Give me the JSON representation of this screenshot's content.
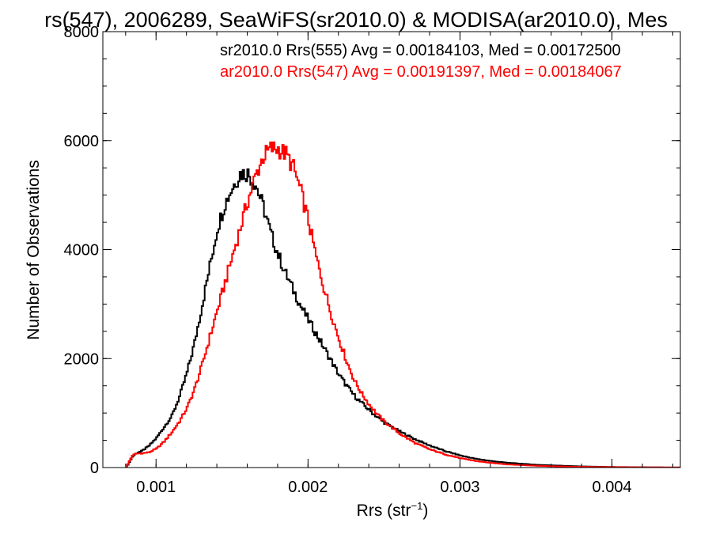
{
  "chart_data": {
    "type": "line",
    "title": "rs(547), 2006289, SeaWiFS(sr2010.0) & MODISA(ar2010.0), Mes",
    "xlabel_main": "Rrs (str",
    "xlabel_sup": "−1",
    "xlabel_close": ")",
    "ylabel": "Number of Observations",
    "xlim": [
      0.00065,
      0.00445
    ],
    "ylim": [
      0,
      8000
    ],
    "x_ticks": [
      {
        "value": 0.001,
        "label": "0.001"
      },
      {
        "value": 0.002,
        "label": "0.002"
      },
      {
        "value": 0.003,
        "label": "0.003"
      },
      {
        "value": 0.004,
        "label": "0.004"
      }
    ],
    "y_ticks": [
      {
        "value": 0,
        "label": "0"
      },
      {
        "value": 2000,
        "label": "2000"
      },
      {
        "value": 4000,
        "label": "4000"
      },
      {
        "value": 6000,
        "label": "6000"
      },
      {
        "value": 8000,
        "label": "8000"
      }
    ],
    "x_minor_step": 0.0002,
    "y_minor_step": 500,
    "grid": false,
    "legend_position": "top-right",
    "series": [
      {
        "name": "sr2010.0 Rrs(555) Avg = 0.00184103, Med = 0.00172500",
        "color": "#000000",
        "x": [
          0.0008,
          0.00082,
          0.00084,
          0.00086,
          0.00088,
          0.0009,
          0.00095,
          0.001,
          0.00105,
          0.0011,
          0.00115,
          0.0012,
          0.00125,
          0.0013,
          0.00135,
          0.0014,
          0.00145,
          0.0015,
          0.00155,
          0.0016,
          0.00165,
          0.0017,
          0.00175,
          0.0018,
          0.00185,
          0.0019,
          0.00195,
          0.002,
          0.00205,
          0.0021,
          0.00215,
          0.0022,
          0.00225,
          0.0023,
          0.00235,
          0.0024,
          0.00245,
          0.0025,
          0.0026,
          0.0027,
          0.0028,
          0.0029,
          0.003,
          0.0031,
          0.0032,
          0.0033,
          0.0034,
          0.0035,
          0.0036,
          0.0037,
          0.0038,
          0.0039,
          0.004,
          0.0041,
          0.0042,
          0.0043,
          0.0044
        ],
        "y": [
          0,
          100,
          200,
          250,
          280,
          300,
          400,
          550,
          750,
          950,
          1300,
          1750,
          2300,
          3000,
          3700,
          4400,
          4850,
          5150,
          5400,
          5400,
          5200,
          4800,
          4300,
          3900,
          3550,
          3250,
          2950,
          2700,
          2450,
          2200,
          1950,
          1700,
          1500,
          1320,
          1180,
          1050,
          930,
          820,
          660,
          520,
          400,
          300,
          220,
          160,
          120,
          90,
          70,
          50,
          40,
          30,
          20,
          15,
          10,
          8,
          5,
          3,
          2
        ]
      },
      {
        "name": "ar2010.0 Rrs(547) Avg = 0.00191397, Med = 0.00184067",
        "color": "#ff0000",
        "x": [
          0.0008,
          0.00082,
          0.00084,
          0.00086,
          0.00088,
          0.0009,
          0.00095,
          0.001,
          0.00105,
          0.0011,
          0.00115,
          0.0012,
          0.00125,
          0.0013,
          0.00135,
          0.0014,
          0.00145,
          0.0015,
          0.00155,
          0.0016,
          0.00165,
          0.0017,
          0.00175,
          0.0018,
          0.00185,
          0.0019,
          0.00195,
          0.002,
          0.00205,
          0.0021,
          0.00215,
          0.0022,
          0.00225,
          0.0023,
          0.00235,
          0.0024,
          0.00245,
          0.0025,
          0.0026,
          0.0027,
          0.0028,
          0.0029,
          0.003,
          0.0031,
          0.0032,
          0.0033,
          0.0034,
          0.0035,
          0.0036,
          0.0037,
          0.0038,
          0.0039,
          0.004,
          0.0041,
          0.0042,
          0.0043,
          0.0044
        ],
        "y": [
          0,
          120,
          220,
          250,
          260,
          260,
          280,
          350,
          480,
          650,
          850,
          1100,
          1450,
          1900,
          2400,
          2900,
          3400,
          3900,
          4400,
          4900,
          5350,
          5700,
          5850,
          5850,
          5750,
          5500,
          5050,
          4500,
          3850,
          3300,
          2800,
          2350,
          1950,
          1600,
          1350,
          1150,
          980,
          840,
          620,
          450,
          330,
          240,
          170,
          120,
          85,
          60,
          45,
          33,
          25,
          18,
          14,
          10,
          8,
          6,
          4,
          3,
          2
        ]
      }
    ]
  }
}
